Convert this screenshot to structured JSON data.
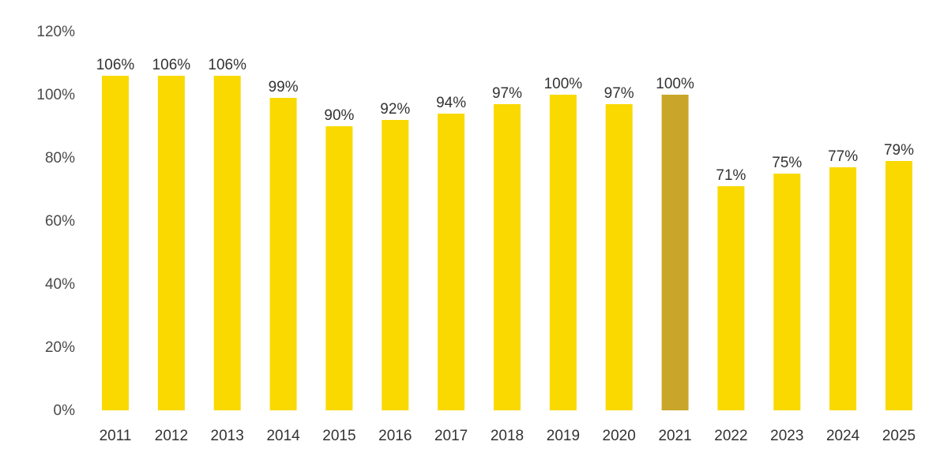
{
  "chart_data": {
    "type": "bar",
    "categories": [
      "2011",
      "2012",
      "2013",
      "2014",
      "2015",
      "2016",
      "2017",
      "2018",
      "2019",
      "2020",
      "2021",
      "2022",
      "2023",
      "2024",
      "2025"
    ],
    "values": [
      106,
      106,
      106,
      99,
      90,
      92,
      94,
      97,
      100,
      97,
      100,
      71,
      75,
      77,
      79
    ],
    "value_labels": [
      "106%",
      "106%",
      "106%",
      "99%",
      "90%",
      "92%",
      "94%",
      "97%",
      "100%",
      "97%",
      "100%",
      "71%",
      "75%",
      "77%",
      "79%"
    ],
    "highlighted_category": "2021",
    "title": "",
    "xlabel": "",
    "ylabel": "",
    "ylim": [
      0,
      120
    ],
    "y_ticks": [
      0,
      20,
      40,
      60,
      80,
      100,
      120
    ],
    "y_tick_labels": [
      "0%",
      "20%",
      "40%",
      "60%",
      "80%",
      "100%",
      "120%"
    ],
    "grid": false,
    "legend": "none",
    "colors": {
      "bar": "#f9d900",
      "highlight_bar": "#c9a62a",
      "text": "#333333"
    }
  }
}
